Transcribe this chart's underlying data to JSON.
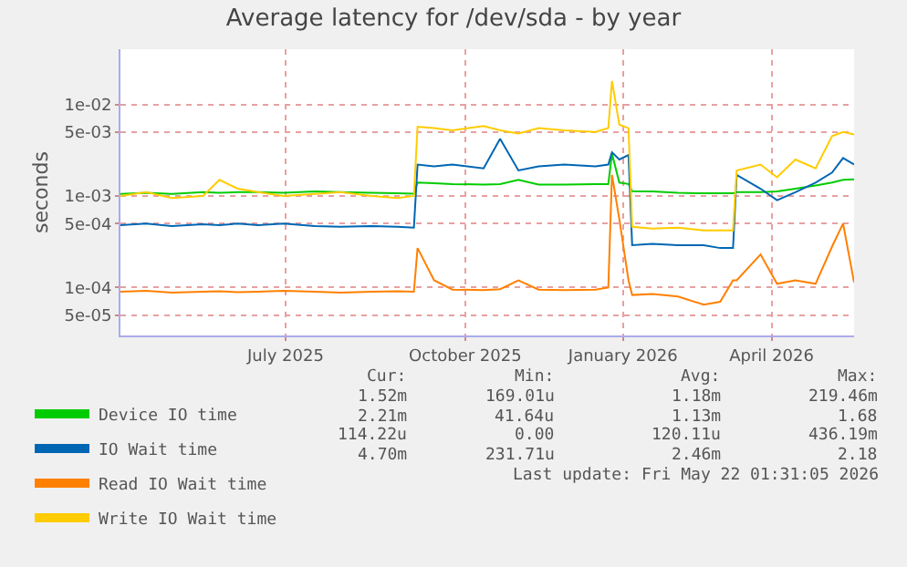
{
  "chart_data": {
    "type": "line",
    "title": "Average latency for /dev/sda - by year",
    "ylabel": "seconds",
    "log": "y",
    "grid": true,
    "legend": "bottom",
    "marker": "none",
    "line_style": "solid",
    "x": [
      "2025-04-17",
      "2025-05-01",
      "2025-05-15",
      "2025-06-01",
      "2025-06-10",
      "2025-06-20",
      "2025-07-01",
      "2025-07-15",
      "2025-08-01",
      "2025-08-15",
      "2025-09-01",
      "2025-09-15",
      "2025-09-24",
      "2025-09-26",
      "2025-10-05",
      "2025-10-15",
      "2025-11-01",
      "2025-11-10",
      "2025-11-20",
      "2025-12-01",
      "2025-12-15",
      "2026-01-01",
      "2026-01-08",
      "2026-01-10",
      "2026-01-14",
      "2026-01-19",
      "2026-01-21",
      "2026-02-01",
      "2026-02-15",
      "2026-03-01",
      "2026-03-10",
      "2026-03-17",
      "2026-03-19",
      "2026-04-01",
      "2026-04-10",
      "2026-04-20",
      "2026-05-01",
      "2026-05-10",
      "2026-05-16",
      "2026-05-22"
    ],
    "xlim": [
      "2025-04-17",
      "2026-05-22"
    ],
    "xticks": [
      {
        "value": "2025-07-16",
        "label": "July 2025"
      },
      {
        "value": "2025-10-22",
        "label": "October 2025"
      },
      {
        "value": "2026-01-16",
        "label": "January 2026"
      },
      {
        "value": "2026-04-07",
        "label": "April 2026"
      }
    ],
    "ylim": [
      3e-05,
      0.04
    ],
    "yticks": [
      {
        "value": 5e-05,
        "label": "5e-05"
      },
      {
        "value": 0.0001,
        "label": "1e-04"
      },
      {
        "value": 0.0005,
        "label": "5e-04"
      },
      {
        "value": 0.001,
        "label": "1e-03"
      },
      {
        "value": 0.005,
        "label": "5e-03"
      },
      {
        "value": 0.01,
        "label": "1e-02"
      }
    ],
    "series": [
      {
        "name": "Device IO time",
        "color": "#00cc00",
        "values": [
          0.00105,
          0.00108,
          0.00105,
          0.0011,
          0.00108,
          0.0011,
          0.0011,
          0.00108,
          0.00112,
          0.0011,
          0.00108,
          0.00107,
          0.00106,
          0.0014,
          0.00138,
          0.00135,
          0.00133,
          0.00135,
          0.0015,
          0.00133,
          0.00133,
          0.00135,
          0.00135,
          0.0029,
          0.0014,
          0.00135,
          0.00113,
          0.00112,
          0.00108,
          0.00107,
          0.00107,
          0.00107,
          0.0011,
          0.0011,
          0.00112,
          0.0012,
          0.0013,
          0.0014,
          0.0015,
          0.00152
        ]
      },
      {
        "name": "IO Wait time",
        "color": "#0066b3",
        "values": [
          0.00048,
          0.0005,
          0.00047,
          0.00049,
          0.00048,
          0.0005,
          0.00048,
          0.0005,
          0.00047,
          0.00046,
          0.00047,
          0.00046,
          0.00045,
          0.0022,
          0.0021,
          0.0022,
          0.002,
          0.0042,
          0.0019,
          0.0021,
          0.0022,
          0.0021,
          0.0022,
          0.003,
          0.0025,
          0.0028,
          0.00029,
          0.0003,
          0.00029,
          0.00029,
          0.00027,
          0.00027,
          0.0017,
          0.0012,
          0.0009,
          0.0011,
          0.0014,
          0.0018,
          0.0026,
          0.00221
        ]
      },
      {
        "name": "Read IO Wait time",
        "color": "#ff8000",
        "values": [
          9e-05,
          9.2e-05,
          8.8e-05,
          9e-05,
          9.1e-05,
          8.9e-05,
          9e-05,
          9.2e-05,
          9e-05,
          8.8e-05,
          9e-05,
          9.1e-05,
          9e-05,
          0.00027,
          0.00012,
          9.5e-05,
          9.4e-05,
          9.6e-05,
          0.00012,
          9.5e-05,
          9.4e-05,
          9.5e-05,
          0.0001,
          0.0017,
          0.00056,
          0.00012,
          8.3e-05,
          8.5e-05,
          8e-05,
          6.5e-05,
          7e-05,
          0.00012,
          0.00012,
          0.00023,
          0.00011,
          0.00012,
          0.00011,
          0.00028,
          0.0005,
          0.000114
        ]
      },
      {
        "name": "Write IO Wait time",
        "color": "#ffcc00",
        "values": [
          0.001,
          0.0011,
          0.00095,
          0.001,
          0.0015,
          0.0012,
          0.0011,
          0.001,
          0.00105,
          0.0011,
          0.001,
          0.00095,
          0.001,
          0.0057,
          0.0055,
          0.0052,
          0.0058,
          0.0052,
          0.0048,
          0.0055,
          0.0052,
          0.005,
          0.0055,
          0.018,
          0.006,
          0.0055,
          0.00046,
          0.00044,
          0.00045,
          0.00042,
          0.00042,
          0.00042,
          0.0019,
          0.0022,
          0.0016,
          0.0025,
          0.002,
          0.0045,
          0.005,
          0.0047
        ]
      }
    ],
    "annotations": [
      "Cur:",
      "Min:",
      "Avg:",
      "Max:",
      "1.52m",
      "169.01u",
      "1.18m",
      "219.46m",
      "2.21m",
      "41.64u",
      "1.13m",
      "1.68",
      "114.22u",
      "0.00",
      "120.11u",
      "436.19m",
      "4.70m",
      "231.71u",
      "2.46m",
      "2.18",
      "Last update: Fri May 22 01:31:05 2026"
    ]
  }
}
